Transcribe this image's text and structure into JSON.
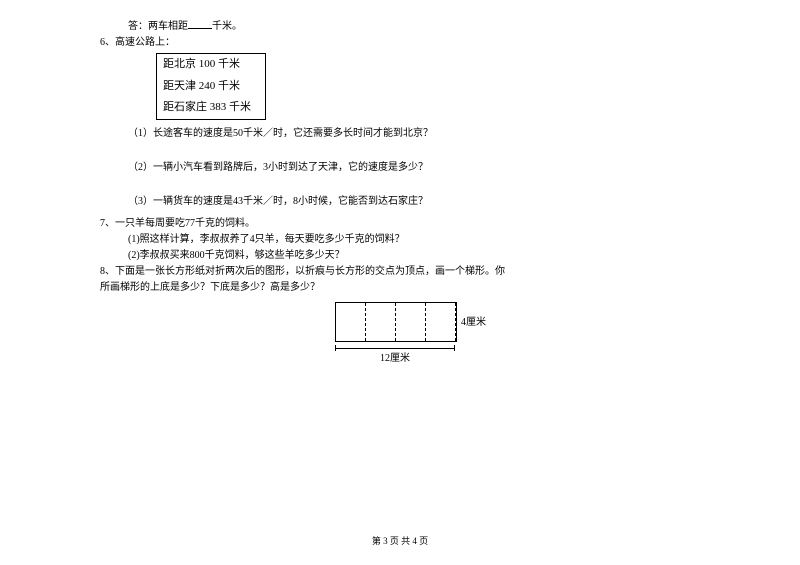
{
  "q5_tail": {
    "prefix": "答：两车相距",
    "suffix": "千米。"
  },
  "q6": {
    "label": "6、高速公路上：",
    "sign": {
      "line1": "距北京 100 千米",
      "line2": "距天津 240 千米",
      "line3": "距石家庄 383 千米"
    },
    "part1": "（1）长途客车的速度是50千米／时，它还需要多长时间才能到北京？",
    "part2": "（2）一辆小汽车看到路牌后，3小时到达了天津，它的速度是多少？",
    "part3": "（3）一辆货车的速度是43千米／时，8小时候，它能否到达石家庄？"
  },
  "q7": {
    "label": "7、一只羊每周要吃77千克的饲料。",
    "part1": "(1)照这样计算，李叔叔养了4只羊，每天要吃多少千克的饲料？",
    "part2": "(2)李叔叔买来800千克饲料，够这些羊吃多少天？"
  },
  "q8": {
    "line1": "8、下面是一张长方形纸对折两次后的图形，以折痕与长方形的交点为顶点，画一个梯形。你",
    "line2": "所画梯形的上底是多少？下底是多少？高是多少？"
  },
  "diagram": {
    "height_label": "4厘米",
    "width_label": "12厘米"
  },
  "footer": "第 3 页 共 4 页"
}
